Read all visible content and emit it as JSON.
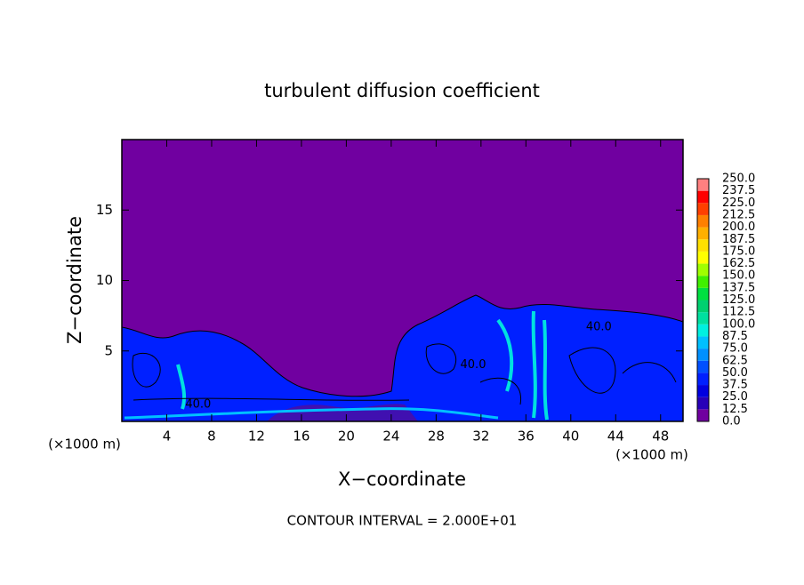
{
  "chart_data": {
    "type": "contour",
    "title": "turbulent diffusion coefficient",
    "x_label": "X−coordinate",
    "y_label": "Z−coordinate",
    "x_unit_left": "(×1000 m)",
    "x_unit_right": "(×1000 m)",
    "footer": "CONTOUR INTERVAL = 2.000E+01",
    "xlim": [
      0,
      50
    ],
    "ylim": [
      0,
      20
    ],
    "xticks": [
      4,
      8,
      12,
      16,
      20,
      24,
      28,
      32,
      36,
      40,
      44,
      48
    ],
    "yticks": [
      5,
      10,
      15
    ],
    "background_color": "#7000a0",
    "annotations": [
      {
        "text": "40.0",
        "x": 42.5,
        "y": 6.7
      },
      {
        "text": "40.0",
        "x": 31.3,
        "y": 4.0
      },
      {
        "text": "40.0",
        "x": 6.8,
        "y": 1.2
      }
    ],
    "colorbar": {
      "levels": [
        {
          "value": 0,
          "label": "0.0"
        },
        {
          "value": 12.5,
          "label": "12.5"
        },
        {
          "value": 25,
          "label": "25.0"
        },
        {
          "value": 37.5,
          "label": "37.5"
        },
        {
          "value": 50,
          "label": "50.0"
        },
        {
          "value": 62.5,
          "label": "62.5"
        },
        {
          "value": 75,
          "label": "75.0"
        },
        {
          "value": 87.5,
          "label": "87.5"
        },
        {
          "value": 100,
          "label": "100.0"
        },
        {
          "value": 112.5,
          "label": "112.5"
        },
        {
          "value": 125,
          "label": "125.0"
        },
        {
          "value": 137.5,
          "label": "137.5"
        },
        {
          "value": 150,
          "label": "150.0"
        },
        {
          "value": 162.5,
          "label": "162.5"
        },
        {
          "value": 175,
          "label": "175.0"
        },
        {
          "value": 187.5,
          "label": "187.5"
        },
        {
          "value": 200,
          "label": "200.0"
        },
        {
          "value": 212.5,
          "label": "212.5"
        },
        {
          "value": 225,
          "label": "225.0"
        },
        {
          "value": 237.5,
          "label": "237.5"
        },
        {
          "value": 250,
          "label": "250.0"
        }
      ],
      "colors": [
        "#7000a0",
        "#2800b8",
        "#0000e0",
        "#0020ff",
        "#0050ff",
        "#0090ff",
        "#00c0ff",
        "#00f0e0",
        "#00e0a0",
        "#00d070",
        "#00e040",
        "#40f000",
        "#a0ff00",
        "#ffff00",
        "#ffe000",
        "#ffb000",
        "#ff8000",
        "#ff4000",
        "#ff0000",
        "#ff8080"
      ]
    }
  }
}
